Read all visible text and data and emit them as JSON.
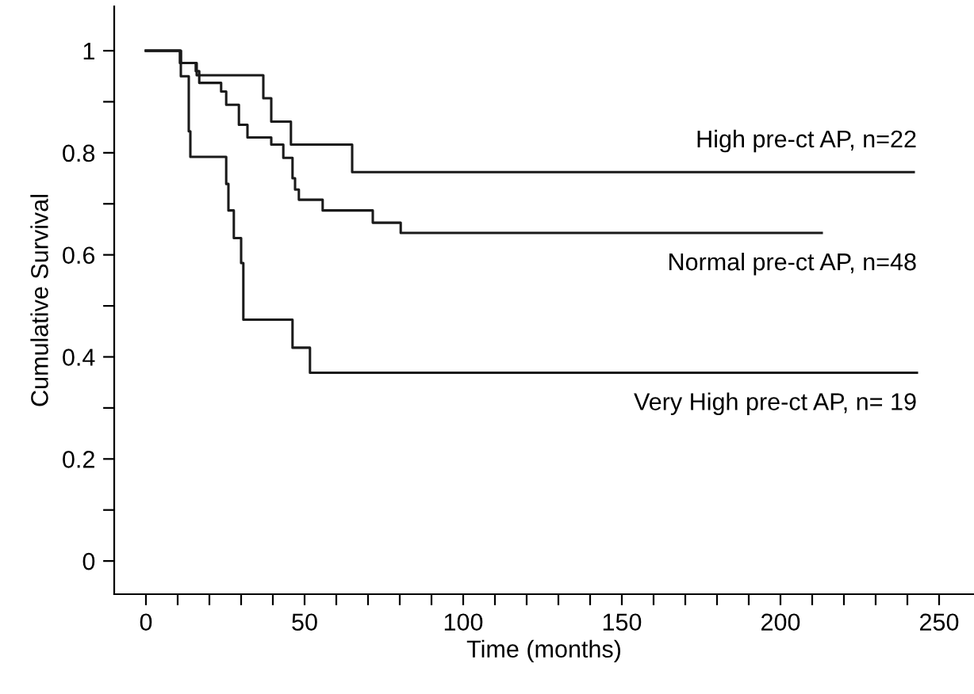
{
  "chart_data": {
    "type": "step",
    "xlabel": "Time (months)",
    "ylabel": "Cumulative Survival",
    "xlim": [
      -10,
      261
    ],
    "ylim": [
      -0.065,
      1.087
    ],
    "xticks": [
      0,
      {
        "value": 10,
        "label": null
      },
      {
        "value": 20,
        "label": null
      },
      {
        "value": 30,
        "label": null
      },
      {
        "value": 40,
        "label": null
      },
      50,
      {
        "value": 60,
        "label": null
      },
      {
        "value": 70,
        "label": null
      },
      {
        "value": 80,
        "label": null
      },
      {
        "value": 90,
        "label": null
      },
      100,
      {
        "value": 110,
        "label": null
      },
      {
        "value": 120,
        "label": null
      },
      {
        "value": 130,
        "label": null
      },
      {
        "value": 140,
        "label": null
      },
      150,
      {
        "value": 160,
        "label": null
      },
      {
        "value": 170,
        "label": null
      },
      {
        "value": 180,
        "label": null
      },
      {
        "value": 190,
        "label": null
      },
      200,
      {
        "value": 210,
        "label": null
      },
      {
        "value": 220,
        "label": null
      },
      {
        "value": 230,
        "label": null
      },
      {
        "value": 240,
        "label": null
      },
      250
    ],
    "yticks": [
      0,
      {
        "value": 0.1,
        "label": null
      },
      0.2,
      {
        "value": 0.3,
        "label": null
      },
      0.4,
      {
        "value": 0.5,
        "label": null
      },
      0.6,
      {
        "value": 0.7,
        "label": null
      },
      0.8,
      {
        "value": 0.9,
        "label": null
      },
      1
    ],
    "grid": false,
    "legend": false,
    "line_style": "solid",
    "marker": "none",
    "series": [
      {
        "name": "High pre-ct AP, n=22",
        "color": "#1a1a1a",
        "x": [
          0,
          11,
          16,
          37,
          39.5,
          45.7,
          65,
          242
        ],
        "values": [
          1,
          0.976,
          0.952,
          0.907,
          0.861,
          0.816,
          0.762,
          0.762
        ]
      },
      {
        "name": "Normal pre-ct AP, n=48",
        "color": "#1a1a1a",
        "x": [
          0,
          10.7,
          15.7,
          16.8,
          23.7,
          25.3,
          29.3,
          32,
          39.5,
          43.3,
          46.2,
          47,
          48.2,
          55.7,
          71.5,
          80.3,
          213
        ],
        "values": [
          1,
          0.976,
          0.96,
          0.937,
          0.92,
          0.894,
          0.855,
          0.83,
          0.816,
          0.79,
          0.75,
          0.728,
          0.708,
          0.687,
          0.663,
          0.643,
          0.643
        ]
      },
      {
        "name": "Very High pre-ct AP, n= 19",
        "color": "#1a1a1a",
        "x": [
          0,
          11,
          13.5,
          14,
          25.3,
          26,
          27.7,
          30,
          30.7,
          46.2,
          51.7,
          243
        ],
        "values": [
          1,
          0.95,
          0.842,
          0.792,
          0.739,
          0.687,
          0.633,
          0.584,
          0.473,
          0.418,
          0.369,
          0.369
        ]
      }
    ]
  }
}
